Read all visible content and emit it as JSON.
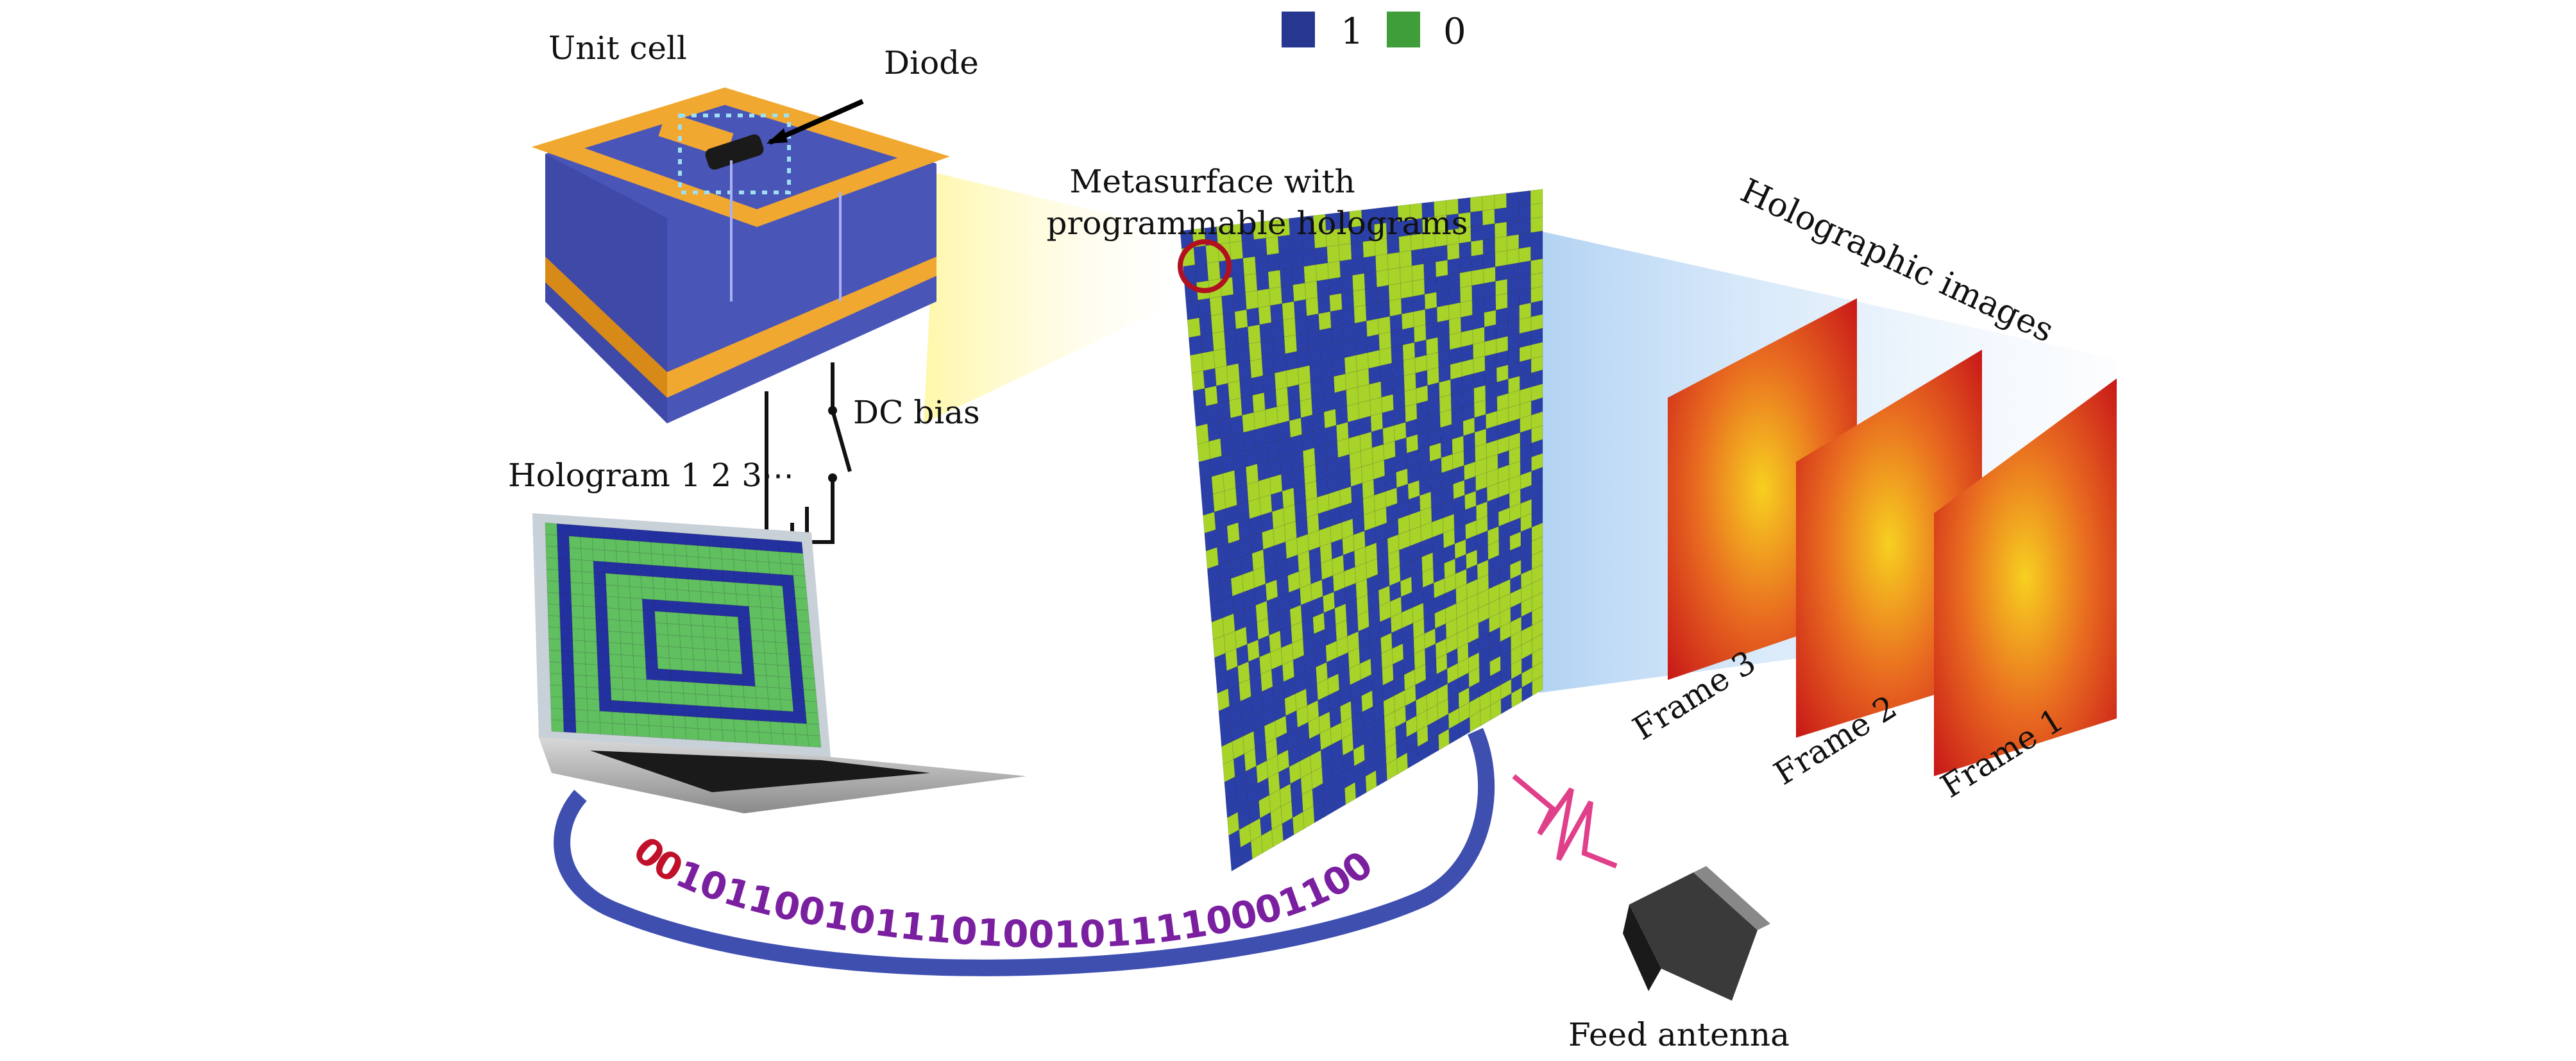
{
  "legend": {
    "items": [
      {
        "label": "1",
        "color": "#27368f"
      },
      {
        "label": "0",
        "color": "#3f9e3a"
      }
    ]
  },
  "labels": {
    "unit_cell": "Unit cell",
    "diode": "Diode",
    "dc_bias": "DC bias",
    "hologram": "Hologram 1 2 3⋯",
    "metasurface_line1": "Metasurface with",
    "metasurface_line2": "programmable holograms",
    "holographic_images": "Holographic images",
    "frames": [
      "Frame 3",
      "Frame 2",
      "Frame 1"
    ],
    "feed_antenna": "Feed antenna"
  },
  "code_stream": {
    "prefix": "00",
    "bits": "1011001011101001011110001100"
  },
  "colors": {
    "metasurface_blue": "#2a3fa8",
    "metasurface_green": "#a8d42a",
    "substrate": "#4a55b8",
    "metal": "#f0a830",
    "loop": "#3f4fb0",
    "highlight_circle": "#b01020",
    "wave": "#e0408a"
  }
}
